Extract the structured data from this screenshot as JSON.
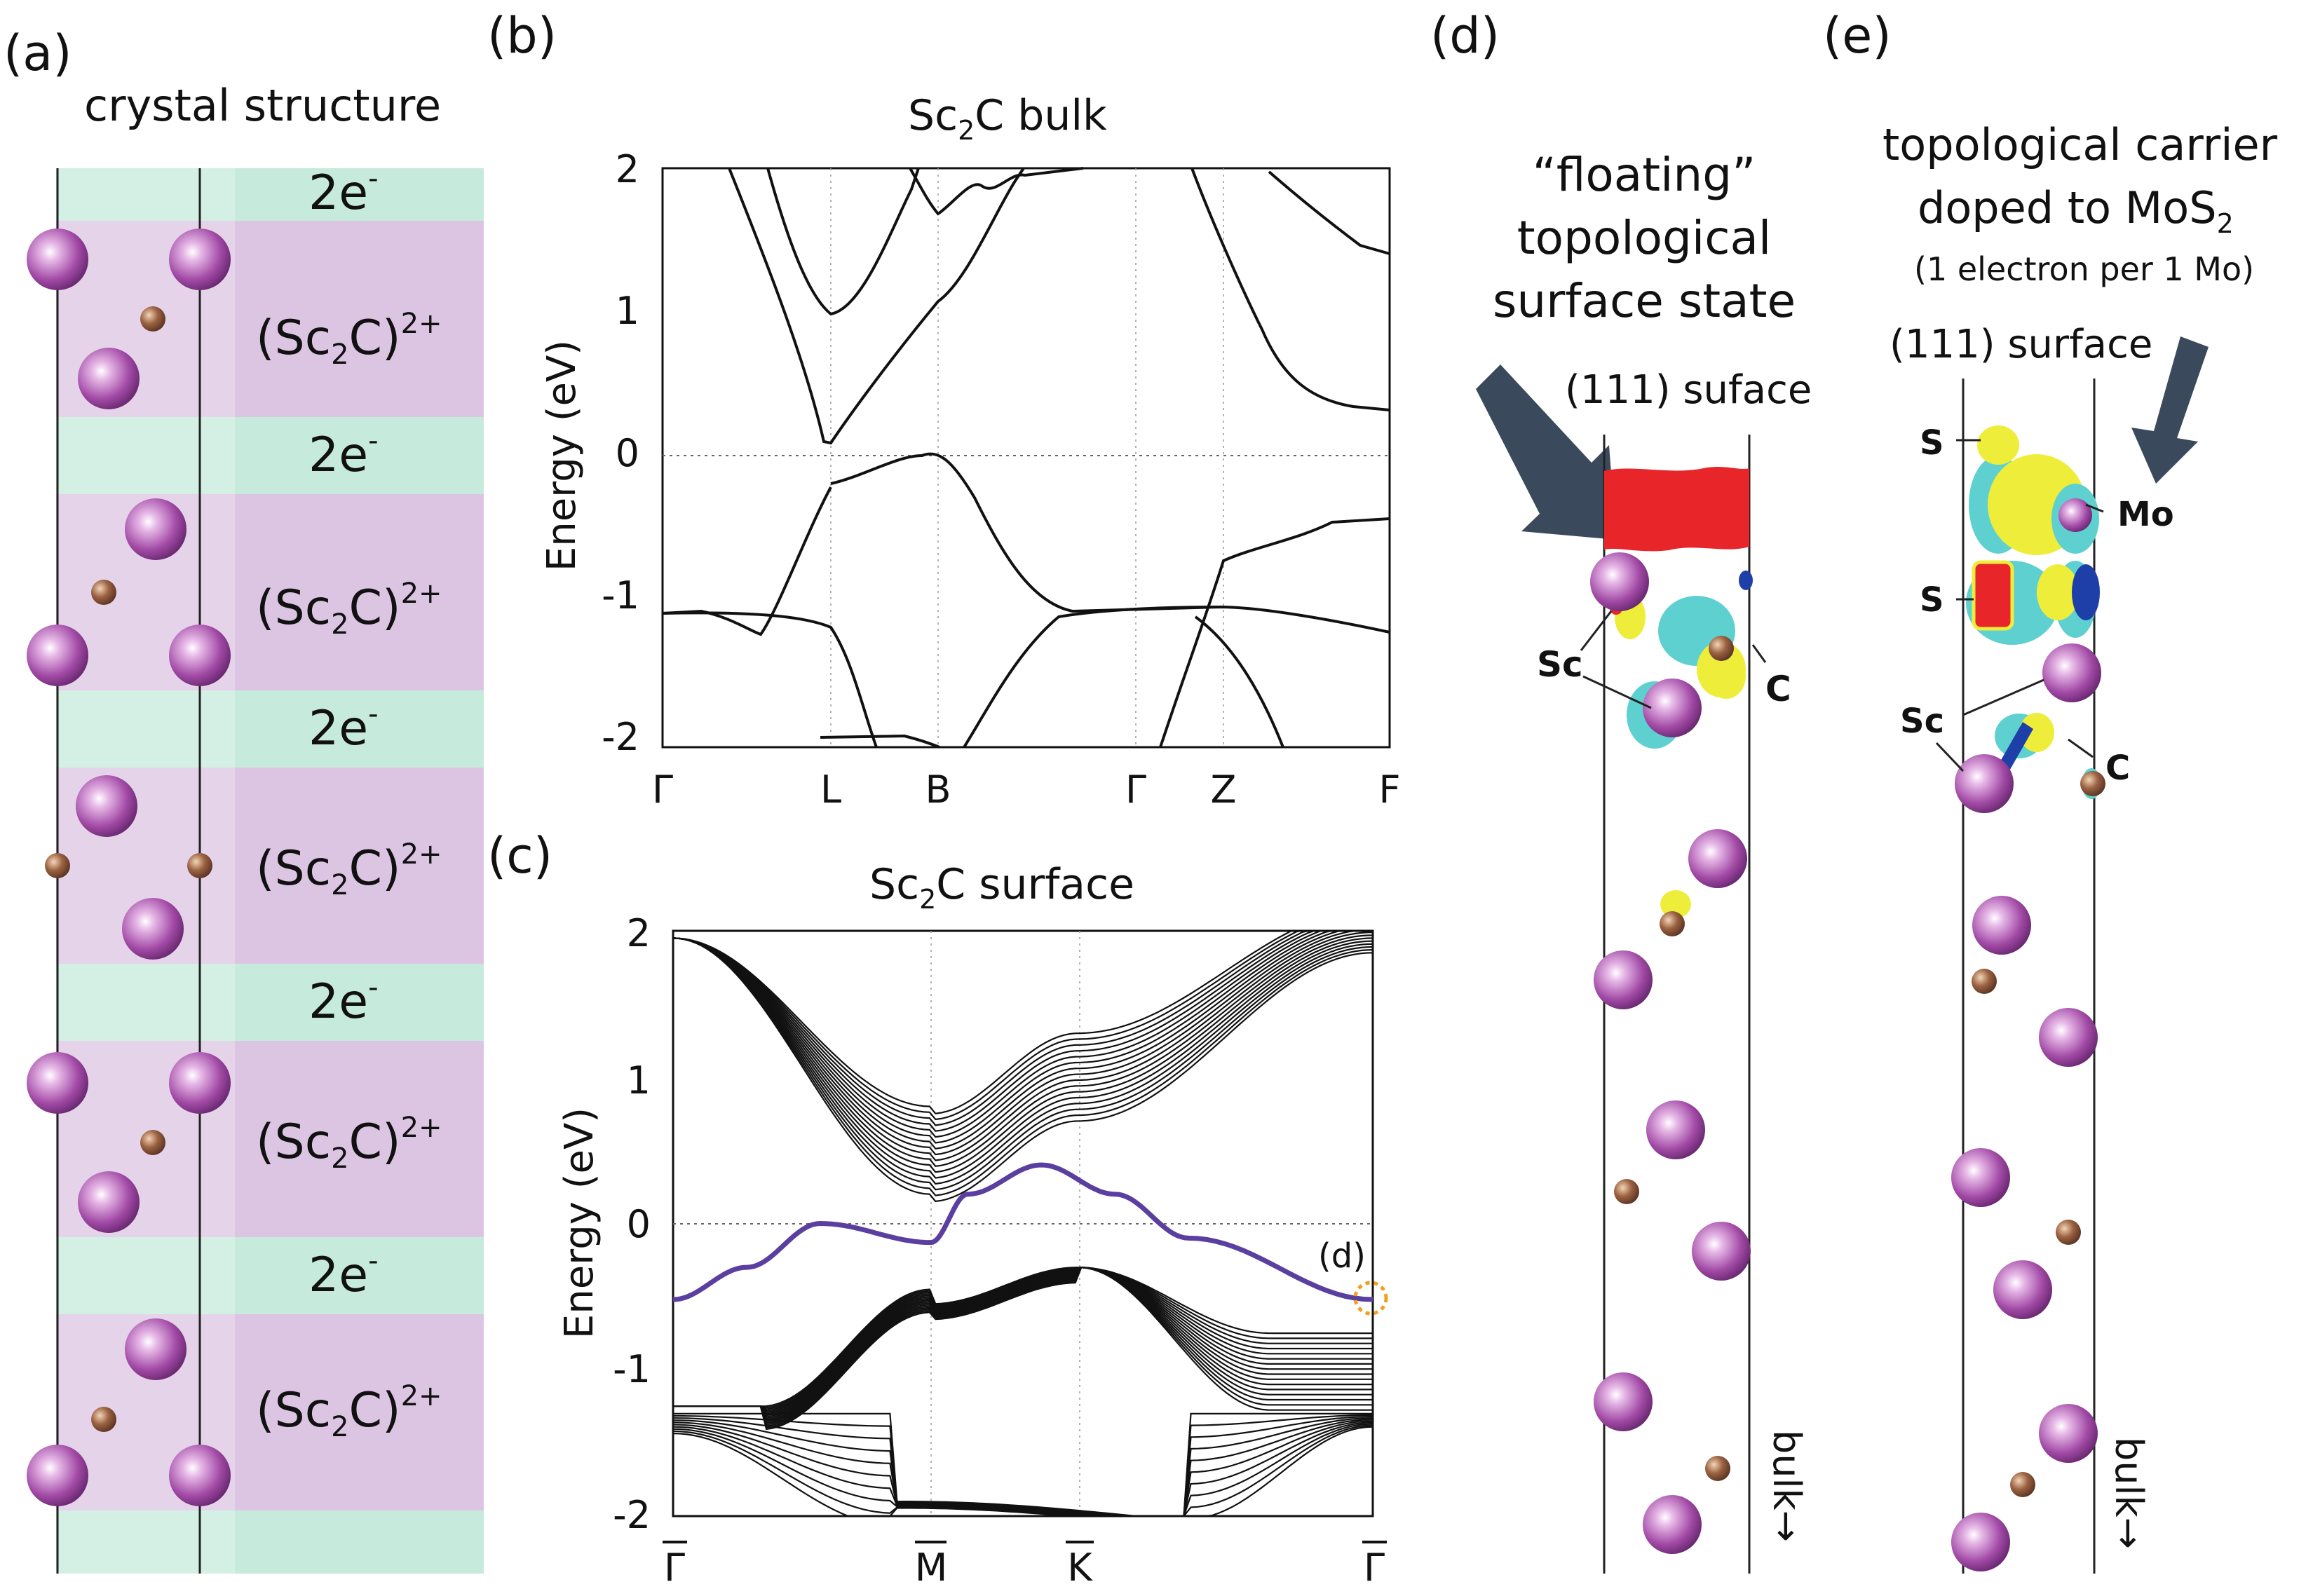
{
  "panels": {
    "a": {
      "letter": "(a)",
      "title": "crystal structure",
      "layers": [
        "2e",
        "(Sc",
        "C)",
        "2+",
        "2",
        "-"
      ]
    },
    "b": {
      "letter": "(b)",
      "title_main": "Sc",
      "title_sub": "2",
      "title_rest": "C bulk",
      "ylabel": "Energy (eV)",
      "yticks": [
        "2",
        "1",
        "0",
        "-1",
        "-2"
      ],
      "xticks": [
        "Γ",
        "L",
        "B",
        "Γ",
        "Z",
        "F"
      ]
    },
    "c": {
      "letter": "(c)",
      "title_main": "Sc",
      "title_sub": "2",
      "title_rest": "C surface",
      "ylabel": "Energy (eV)",
      "yticks": [
        "2",
        "1",
        "0",
        "-1",
        "-2"
      ],
      "xticks": [
        "Γ",
        "M",
        "K",
        "Γ"
      ],
      "marker": "(d)"
    },
    "d": {
      "letter": "(d)",
      "title_lines": [
        "“floating”",
        "topological",
        "surface state"
      ],
      "surface_label": "(111) suface",
      "atom_labels": [
        "Sc",
        "C"
      ],
      "bulk_label": "bulk→"
    },
    "e": {
      "letter": "(e)",
      "title_lines": [
        "topological carrier",
        "doped to MoS",
        "(1 electron per 1 Mo)"
      ],
      "title_sub": "2",
      "surface_label": "(111) surface",
      "atom_labels": [
        "S",
        "Mo",
        "S",
        "Sc",
        "C"
      ],
      "bulk_label": "bulk→"
    }
  },
  "colors": {
    "surface_band": "#5b3fa0",
    "charge_red": "#e8262a",
    "charge_cyan": "#5fd0d0",
    "charge_yellow": "#eeee3a",
    "charge_blue": "#1f3fa8",
    "layer_pink": "#dcc5e3",
    "layer_green": "#c6ebdc",
    "arrow": "#3a4a5c"
  },
  "chart_data": [
    {
      "type": "line",
      "title": "Sc2C bulk",
      "ylabel": "Energy (eV)",
      "ylim": [
        -2,
        2
      ],
      "categories": [
        "Γ",
        "L",
        "B",
        "Γ",
        "Z",
        "F"
      ]
    },
    {
      "type": "line",
      "title": "Sc2C surface",
      "ylabel": "Energy (eV)",
      "ylim": [
        -2,
        2
      ],
      "categories": [
        "Γ",
        "M",
        "K",
        "Γ"
      ],
      "series": [
        {
          "x": [
            0,
            0.5,
            1.0,
            1.75,
            2.0,
            2.5,
            3.0,
            3.5,
            4.75
          ],
          "values": [
            -0.52,
            -0.3,
            0.0,
            -0.13,
            0.2,
            0.4,
            0.2,
            -0.1,
            -0.52
          ]
        }
      ]
    }
  ]
}
